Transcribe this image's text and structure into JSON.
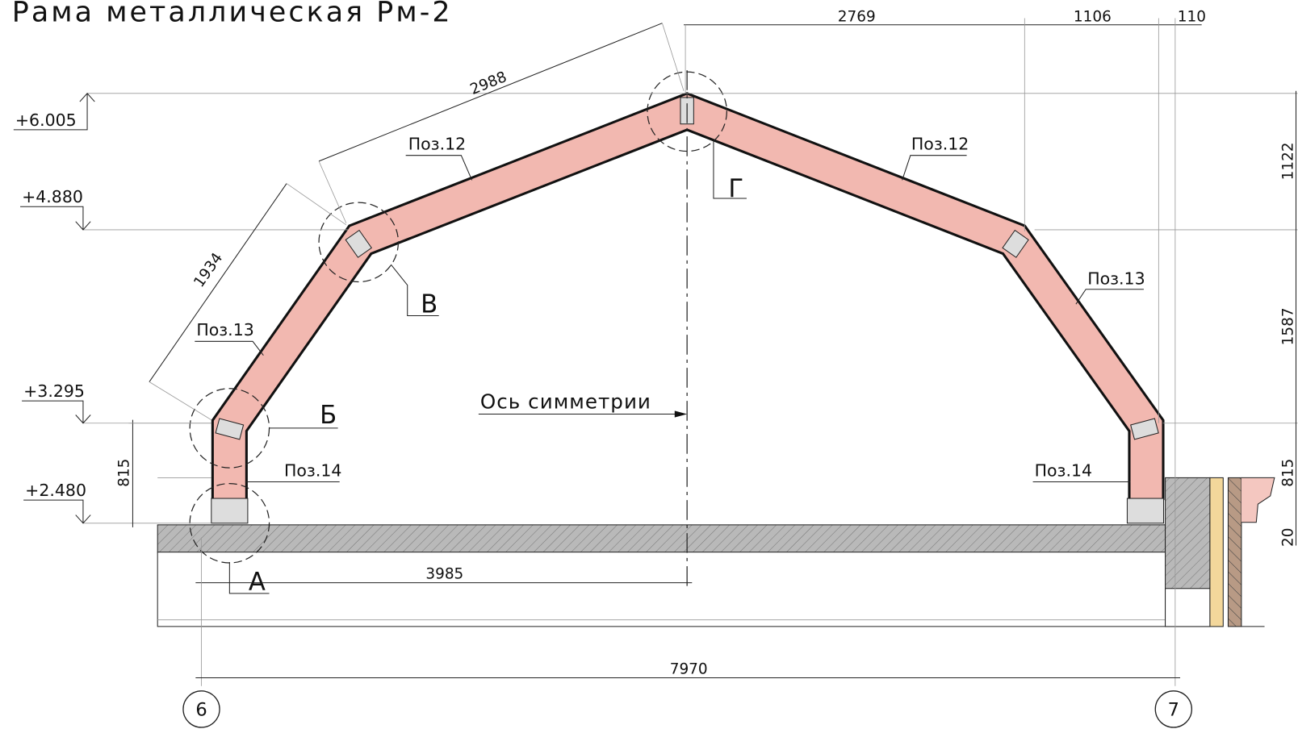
{
  "title": "Рама металлическая Рм-2",
  "dimensions": {
    "top": [
      "2769",
      "1106",
      "110"
    ],
    "rafter": "2988",
    "post": "1934",
    "half_span": "3985",
    "span": "7970",
    "right": [
      "1122",
      "1587",
      "815",
      "20"
    ],
    "left": "815"
  },
  "levels": [
    "+6.005",
    "+4.880",
    "+3.295",
    "+2.480"
  ],
  "positions": [
    "Поз.12",
    "Поз.12",
    "Поз.13",
    "Поз.13",
    "Поз.14",
    "Поз.14"
  ],
  "nodes": [
    "А",
    "Б",
    "В",
    "Г"
  ],
  "symmetry_axis": "Ось симметрии",
  "grid_axes": [
    "6",
    "7"
  ]
}
